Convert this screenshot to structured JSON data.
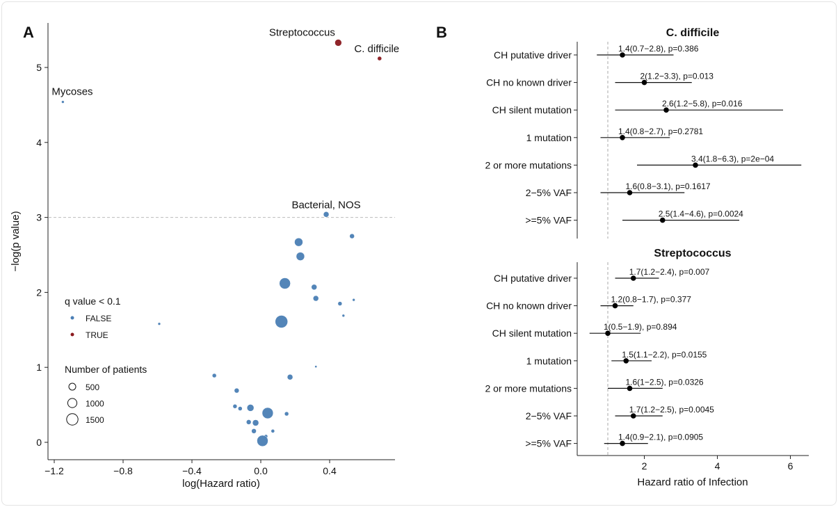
{
  "chart_data": [
    {
      "panel": "A",
      "type": "scatter",
      "xlabel": "log(Hazard ratio)",
      "ylabel": "−log(p value)",
      "xlim": [
        -1.25,
        0.77
      ],
      "ylim": [
        -0.15,
        5.6
      ],
      "xticks": [
        -1.2,
        -0.8,
        -0.4,
        0.0,
        0.4
      ],
      "xtick_labels": [
        "−1.2",
        "−0.8",
        "−0.4",
        "0.0",
        "0.4"
      ],
      "yticks": [
        0,
        1,
        2,
        3,
        4,
        5
      ],
      "threshold_y": 3,
      "grid": false,
      "colors": {
        "FALSE": "#4a7fb5",
        "TRUE": "#8b1a1f"
      },
      "legend": {
        "position": "left",
        "color_title": "q value < 0.1",
        "color_entries": [
          "FALSE",
          "TRUE"
        ],
        "size_title": "Number of patients",
        "size_entries": [
          500,
          1000,
          1500
        ]
      },
      "points": [
        {
          "x": 0.45,
          "y": 5.33,
          "n": 560,
          "q": "TRUE",
          "label": "Streptococcus"
        },
        {
          "x": 0.69,
          "y": 5.12,
          "n": 210,
          "q": "TRUE",
          "label": "C. difficile"
        },
        {
          "x": -1.15,
          "y": 4.54,
          "n": 90,
          "q": "FALSE",
          "label": "Mycoses"
        },
        {
          "x": 0.38,
          "y": 3.04,
          "n": 370,
          "q": "FALSE",
          "label": "Bacterial, NOS"
        },
        {
          "x": 0.22,
          "y": 2.67,
          "n": 840,
          "q": "FALSE"
        },
        {
          "x": 0.23,
          "y": 2.48,
          "n": 840,
          "q": "FALSE"
        },
        {
          "x": 0.53,
          "y": 2.75,
          "n": 280,
          "q": "FALSE"
        },
        {
          "x": 0.14,
          "y": 2.12,
          "n": 1490,
          "q": "FALSE"
        },
        {
          "x": 0.31,
          "y": 2.07,
          "n": 370,
          "q": "FALSE"
        },
        {
          "x": 0.32,
          "y": 1.92,
          "n": 370,
          "q": "FALSE"
        },
        {
          "x": 0.46,
          "y": 1.85,
          "n": 210,
          "q": "FALSE"
        },
        {
          "x": 0.54,
          "y": 1.9,
          "n": 90,
          "q": "FALSE"
        },
        {
          "x": 0.48,
          "y": 1.69,
          "n": 90,
          "q": "FALSE"
        },
        {
          "x": 0.12,
          "y": 1.61,
          "n": 1890,
          "q": "FALSE"
        },
        {
          "x": -0.59,
          "y": 1.58,
          "n": 90,
          "q": "FALSE"
        },
        {
          "x": 0.32,
          "y": 1.01,
          "n": 60,
          "q": "FALSE"
        },
        {
          "x": -0.27,
          "y": 0.89,
          "n": 210,
          "q": "FALSE"
        },
        {
          "x": 0.17,
          "y": 0.87,
          "n": 370,
          "q": "FALSE"
        },
        {
          "x": -0.14,
          "y": 0.69,
          "n": 280,
          "q": "FALSE"
        },
        {
          "x": -0.15,
          "y": 0.48,
          "n": 210,
          "q": "FALSE"
        },
        {
          "x": -0.12,
          "y": 0.45,
          "n": 210,
          "q": "FALSE"
        },
        {
          "x": -0.06,
          "y": 0.46,
          "n": 580,
          "q": "FALSE"
        },
        {
          "x": 0.04,
          "y": 0.39,
          "n": 1490,
          "q": "FALSE"
        },
        {
          "x": 0.15,
          "y": 0.38,
          "n": 210,
          "q": "FALSE"
        },
        {
          "x": -0.07,
          "y": 0.27,
          "n": 280,
          "q": "FALSE"
        },
        {
          "x": -0.03,
          "y": 0.26,
          "n": 470,
          "q": "FALSE"
        },
        {
          "x": -0.04,
          "y": 0.15,
          "n": 280,
          "q": "FALSE"
        },
        {
          "x": 0.07,
          "y": 0.15,
          "n": 150,
          "q": "FALSE"
        },
        {
          "x": 0.03,
          "y": 0.08,
          "n": 150,
          "q": "FALSE"
        },
        {
          "x": 0.01,
          "y": 0.02,
          "n": 1490,
          "q": "FALSE"
        }
      ]
    },
    {
      "panel": "B",
      "type": "forest",
      "xlabel": "Hazard ratio of Infection",
      "xticks": [
        2,
        4,
        6
      ],
      "reference_line": 1,
      "categories": [
        "CH putative driver",
        "CH no known driver",
        "CH silent mutation",
        "1 mutation",
        "2 or more mutations",
        "2−5% VAF",
        ">=5% VAF"
      ],
      "groups": [
        {
          "title": "C. difficile",
          "rows": [
            {
              "hr": 1.4,
              "lo": 0.7,
              "hi": 2.8,
              "label": "1.4(0.7−2.8), p=0.386"
            },
            {
              "hr": 2.0,
              "lo": 1.2,
              "hi": 3.3,
              "label": "2(1.2−3.3), p=0.013"
            },
            {
              "hr": 2.6,
              "lo": 1.2,
              "hi": 5.8,
              "label": "2.6(1.2−5.8), p=0.016"
            },
            {
              "hr": 1.4,
              "lo": 0.8,
              "hi": 2.7,
              "label": "1.4(0.8−2.7), p=0.2781"
            },
            {
              "hr": 3.4,
              "lo": 1.8,
              "hi": 6.3,
              "label": "3.4(1.8−6.3), p=2e−04"
            },
            {
              "hr": 1.6,
              "lo": 0.8,
              "hi": 3.1,
              "label": "1.6(0.8−3.1), p=0.1617"
            },
            {
              "hr": 2.5,
              "lo": 1.4,
              "hi": 4.6,
              "label": "2.5(1.4−4.6), p=0.0024"
            }
          ]
        },
        {
          "title": "Streptococcus",
          "rows": [
            {
              "hr": 1.7,
              "lo": 1.2,
              "hi": 2.4,
              "label": "1.7(1.2−2.4), p=0.007"
            },
            {
              "hr": 1.2,
              "lo": 0.8,
              "hi": 1.7,
              "label": "1.2(0.8−1.7), p=0.377"
            },
            {
              "hr": 1.0,
              "lo": 0.5,
              "hi": 1.9,
              "label": "1(0.5−1.9), p=0.894"
            },
            {
              "hr": 1.5,
              "lo": 1.1,
              "hi": 2.2,
              "label": "1.5(1.1−2.2), p=0.0155"
            },
            {
              "hr": 1.6,
              "lo": 1.0,
              "hi": 2.5,
              "label": "1.6(1−2.5), p=0.0326"
            },
            {
              "hr": 1.7,
              "lo": 1.2,
              "hi": 2.5,
              "label": "1.7(1.2−2.5), p=0.0045"
            },
            {
              "hr": 1.4,
              "lo": 0.9,
              "hi": 2.1,
              "label": "1.4(0.9−2.1), p=0.0905"
            }
          ]
        }
      ]
    }
  ],
  "panel_labels": [
    "A",
    "B"
  ]
}
